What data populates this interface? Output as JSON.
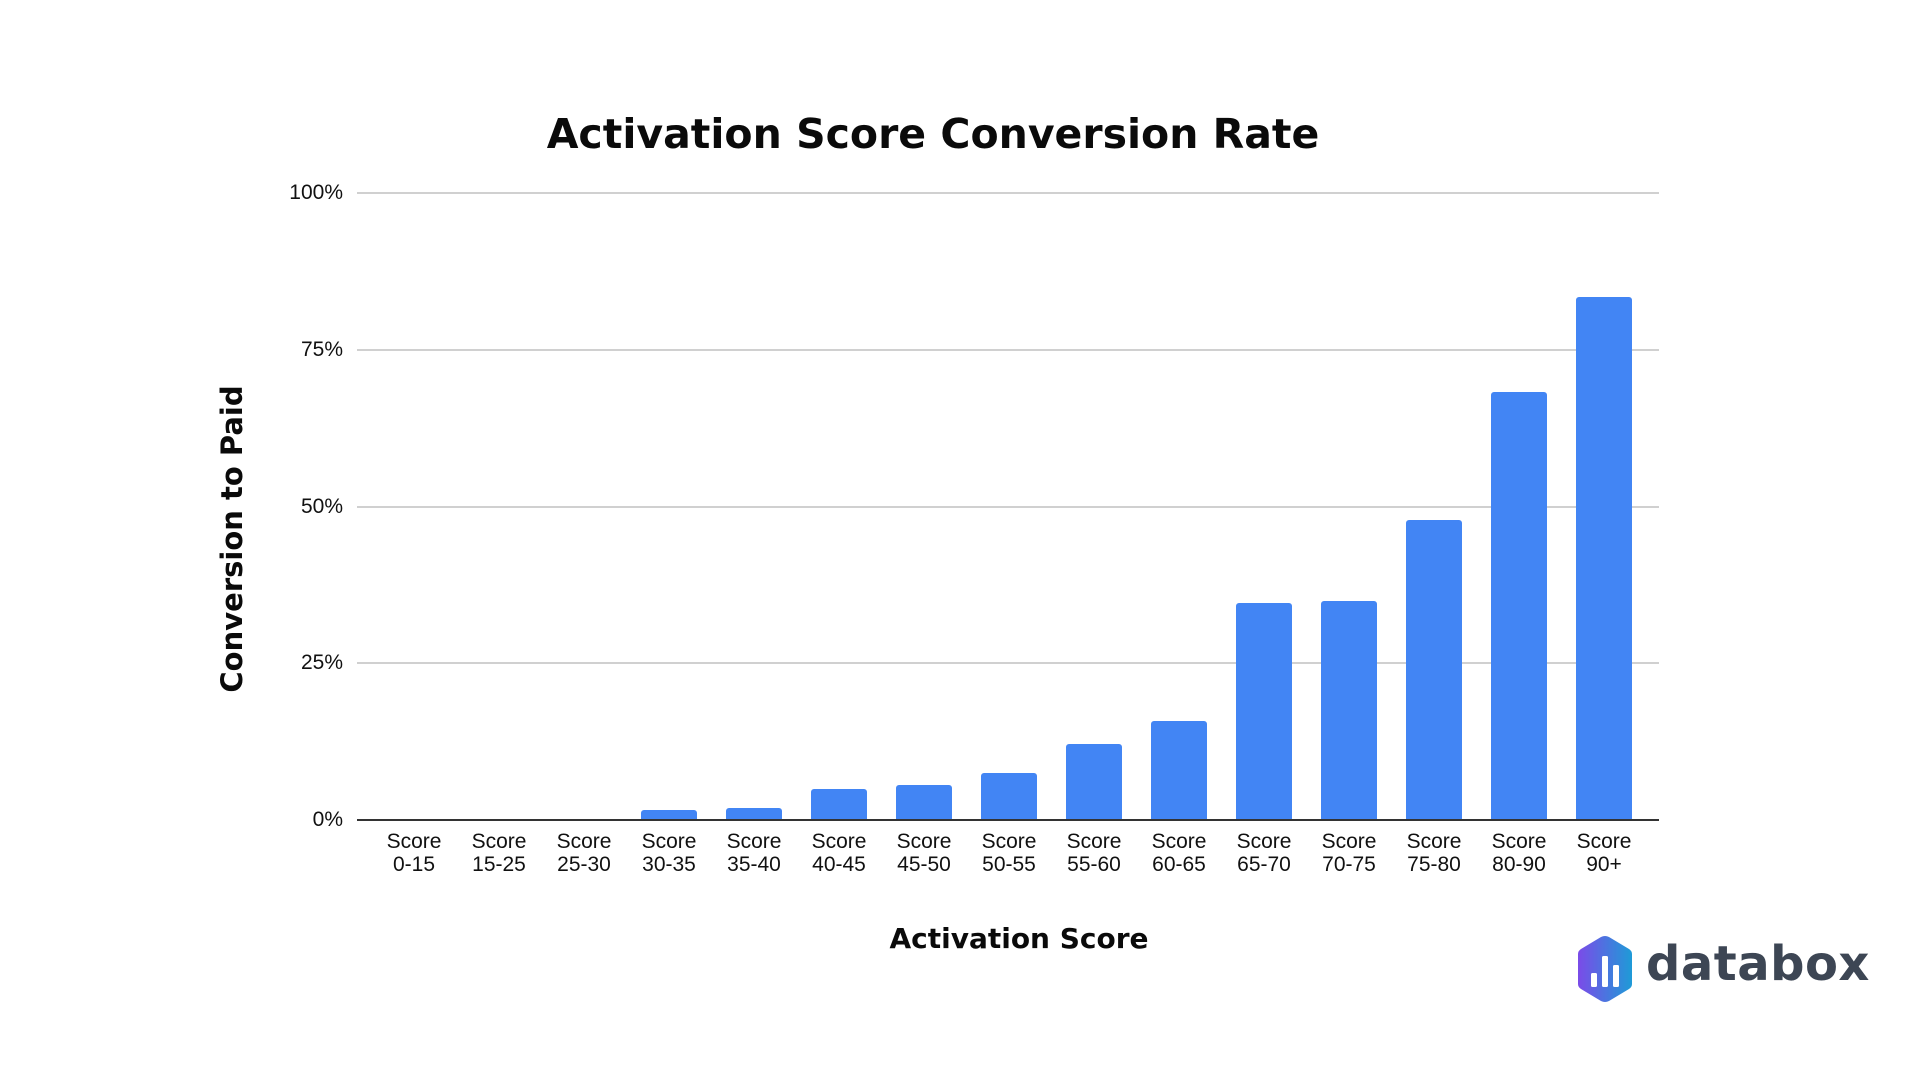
{
  "chart_data": {
    "type": "bar",
    "title": "Activation Score Conversion Rate",
    "xlabel": "Activation Score",
    "ylabel": "Conversion to Paid",
    "ylim": [
      0,
      100
    ],
    "y_unit": "%",
    "yticks": [
      "0%",
      "25%",
      "50%",
      "75%",
      "100%"
    ],
    "grid": true,
    "legend": null,
    "bar_color": "#4285f4",
    "categories": [
      "Score 0-15",
      "Score 15-25",
      "Score 25-30",
      "Score 30-35",
      "Score 35-40",
      "Score 40-45",
      "Score 45-50",
      "Score 50-55",
      "Score 55-60",
      "Score 60-65",
      "Score 65-70",
      "Score 70-75",
      "Score 75-80",
      "Score 80-90",
      "Score 90+"
    ],
    "category_lines": [
      [
        "Score",
        "0-15"
      ],
      [
        "Score",
        "15-25"
      ],
      [
        "Score",
        "25-30"
      ],
      [
        "Score",
        "30-35"
      ],
      [
        "Score",
        "35-40"
      ],
      [
        "Score",
        "40-45"
      ],
      [
        "Score",
        "45-50"
      ],
      [
        "Score",
        "50-55"
      ],
      [
        "Score",
        "55-60"
      ],
      [
        "Score",
        "60-65"
      ],
      [
        "Score",
        "65-70"
      ],
      [
        "Score",
        "70-75"
      ],
      [
        "Score",
        "75-80"
      ],
      [
        "Score",
        "80-90"
      ],
      [
        "Score",
        "90+"
      ]
    ],
    "values": [
      0,
      0,
      0,
      1.6,
      1.9,
      5.0,
      5.6,
      7.5,
      12.1,
      15.8,
      34.6,
      34.9,
      47.8,
      68.2,
      83.4
    ]
  },
  "branding": {
    "logo_text": "databox",
    "logo_gradient": [
      "#7b4be8",
      "#1e9bd7"
    ],
    "text_color": "#3d4654"
  }
}
